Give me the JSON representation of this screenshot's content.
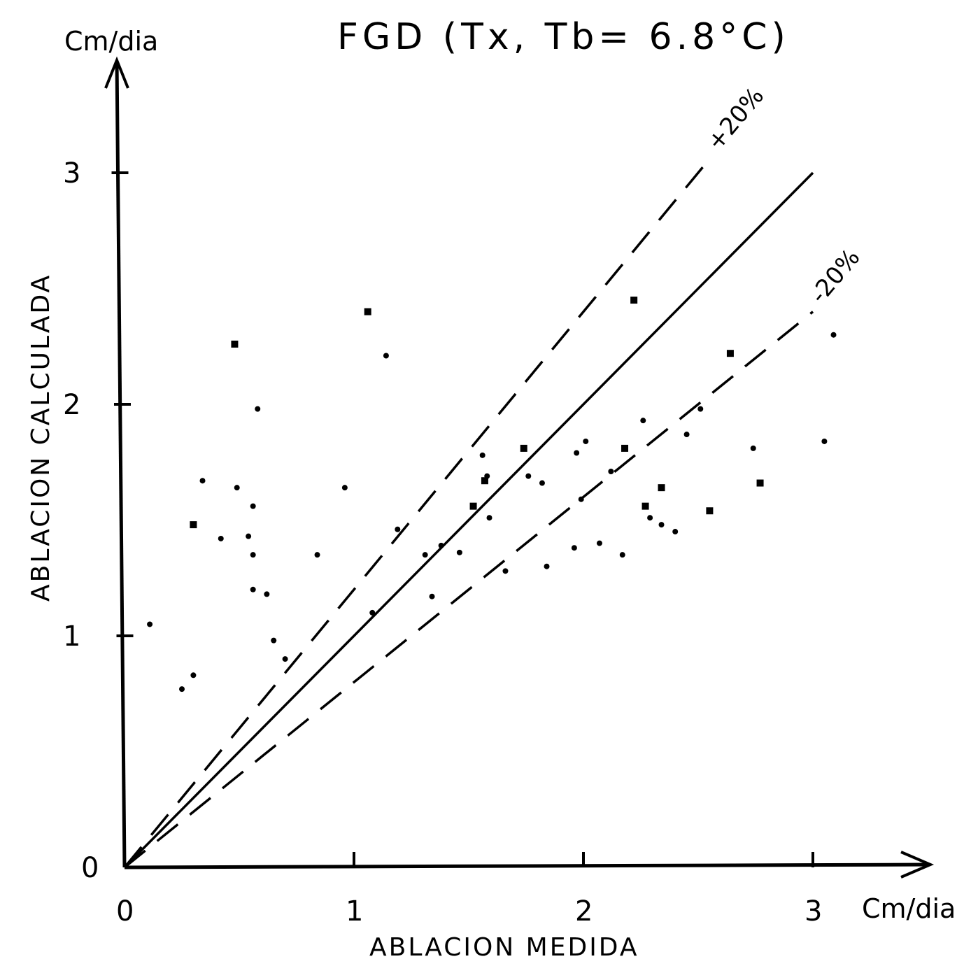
{
  "chart_data": {
    "type": "scatter",
    "title": "FGD (Tx, Tb= 6.8°C)",
    "xlabel": "ABLACION MEDIDA",
    "ylabel": "ABLACION CALCULADA",
    "x_unit": "Cm/dia",
    "y_unit": "Cm/dia",
    "xlim": [
      0,
      3.5
    ],
    "ylim": [
      0,
      3.5
    ],
    "x_ticks": [
      "0",
      "1",
      "2",
      "3"
    ],
    "y_ticks": [
      "0",
      "1",
      "2",
      "3"
    ],
    "grid": false,
    "reference_lines": [
      {
        "label": "",
        "slope": 1.0,
        "x_end": 3.0,
        "style": "solid"
      },
      {
        "label": "+20%",
        "slope": 1.2,
        "x_end": 2.55,
        "style": "dashed"
      },
      {
        "label": "-20%",
        "slope": 0.8,
        "x_end": 3.0,
        "style": "dashed"
      }
    ],
    "series": [
      {
        "marker": "dot",
        "points": [
          [
            0.11,
            1.05
          ],
          [
            0.25,
            0.77
          ],
          [
            0.3,
            0.83
          ],
          [
            0.34,
            1.67
          ],
          [
            0.42,
            1.42
          ],
          [
            0.49,
            1.64
          ],
          [
            0.54,
            1.43
          ],
          [
            0.56,
            1.56
          ],
          [
            0.56,
            1.35
          ],
          [
            0.56,
            1.2
          ],
          [
            0.58,
            1.98
          ],
          [
            0.62,
            1.18
          ],
          [
            0.65,
            0.98
          ],
          [
            0.7,
            0.9
          ],
          [
            0.84,
            1.35
          ],
          [
            0.96,
            1.64
          ],
          [
            1.08,
            1.1
          ],
          [
            1.14,
            2.21
          ],
          [
            1.19,
            1.46
          ],
          [
            1.31,
            1.35
          ],
          [
            1.34,
            1.17
          ],
          [
            1.38,
            1.39
          ],
          [
            1.46,
            1.36
          ],
          [
            1.56,
            1.78
          ],
          [
            1.58,
            1.69
          ],
          [
            1.59,
            1.51
          ],
          [
            1.66,
            1.28
          ],
          [
            1.76,
            1.69
          ],
          [
            1.82,
            1.66
          ],
          [
            1.84,
            1.3
          ],
          [
            1.96,
            1.38
          ],
          [
            1.97,
            1.79
          ],
          [
            1.99,
            1.59
          ],
          [
            2.01,
            1.84
          ],
          [
            2.07,
            1.4
          ],
          [
            2.12,
            1.71
          ],
          [
            2.17,
            1.35
          ],
          [
            2.26,
            1.93
          ],
          [
            2.29,
            1.51
          ],
          [
            2.34,
            1.48
          ],
          [
            2.4,
            1.45
          ],
          [
            2.45,
            1.87
          ],
          [
            2.51,
            1.98
          ],
          [
            2.74,
            1.81
          ],
          [
            3.05,
            1.84
          ],
          [
            3.09,
            2.3
          ]
        ]
      },
      {
        "marker": "square",
        "points": [
          [
            0.3,
            1.48
          ],
          [
            0.48,
            2.26
          ],
          [
            1.06,
            2.4
          ],
          [
            1.52,
            1.56
          ],
          [
            1.57,
            1.67
          ],
          [
            1.74,
            1.81
          ],
          [
            2.18,
            1.81
          ],
          [
            2.22,
            2.45
          ],
          [
            2.27,
            1.56
          ],
          [
            2.34,
            1.64
          ],
          [
            2.55,
            1.54
          ],
          [
            2.64,
            2.22
          ],
          [
            2.77,
            1.66
          ]
        ]
      }
    ]
  }
}
